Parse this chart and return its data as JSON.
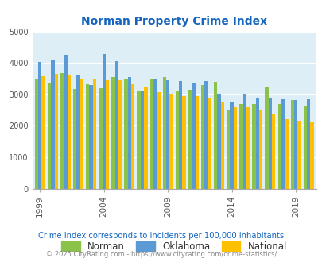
{
  "title": "Norman Property Crime Index",
  "subtitle": "Crime Index corresponds to incidents per 100,000 inhabitants",
  "footer": "© 2025 CityRating.com - https://www.cityrating.com/crime-statistics/",
  "years": [
    1999,
    2000,
    2001,
    2002,
    2003,
    2004,
    2005,
    2006,
    2007,
    2008,
    2009,
    2010,
    2011,
    2012,
    2013,
    2014,
    2015,
    2016,
    2017,
    2018,
    2019,
    2020
  ],
  "norman": [
    3500,
    3350,
    3680,
    3170,
    3320,
    3200,
    3560,
    3480,
    3130,
    3500,
    3560,
    3130,
    3140,
    3310,
    3410,
    2520,
    2680,
    2680,
    3210,
    2700,
    2820,
    2610
  ],
  "oklahoma": [
    4040,
    4080,
    4260,
    3600,
    3300,
    4280,
    4050,
    3560,
    3110,
    3470,
    3450,
    3420,
    3340,
    3430,
    3010,
    2750,
    3000,
    2870,
    2860,
    2840,
    2830,
    2840
  ],
  "national": [
    3580,
    3660,
    3620,
    3500,
    3480,
    3450,
    3440,
    3330,
    3220,
    3060,
    3000,
    2950,
    2950,
    2860,
    2730,
    2600,
    2590,
    2500,
    2360,
    2200,
    2140,
    2110
  ],
  "norman_color": "#8bc34a",
  "oklahoma_color": "#5b9bd5",
  "national_color": "#ffc000",
  "bg_color": "#ddeef6",
  "title_color": "#1565c0",
  "subtitle_color": "#1565c0",
  "footer_color": "#888888",
  "ylim": [
    0,
    5000
  ],
  "yticks": [
    0,
    1000,
    2000,
    3000,
    4000,
    5000
  ],
  "tick_years": [
    1999,
    2004,
    2009,
    2014,
    2019
  ],
  "bar_width": 0.27,
  "legend_labels": [
    "Norman",
    "Oklahoma",
    "National"
  ]
}
